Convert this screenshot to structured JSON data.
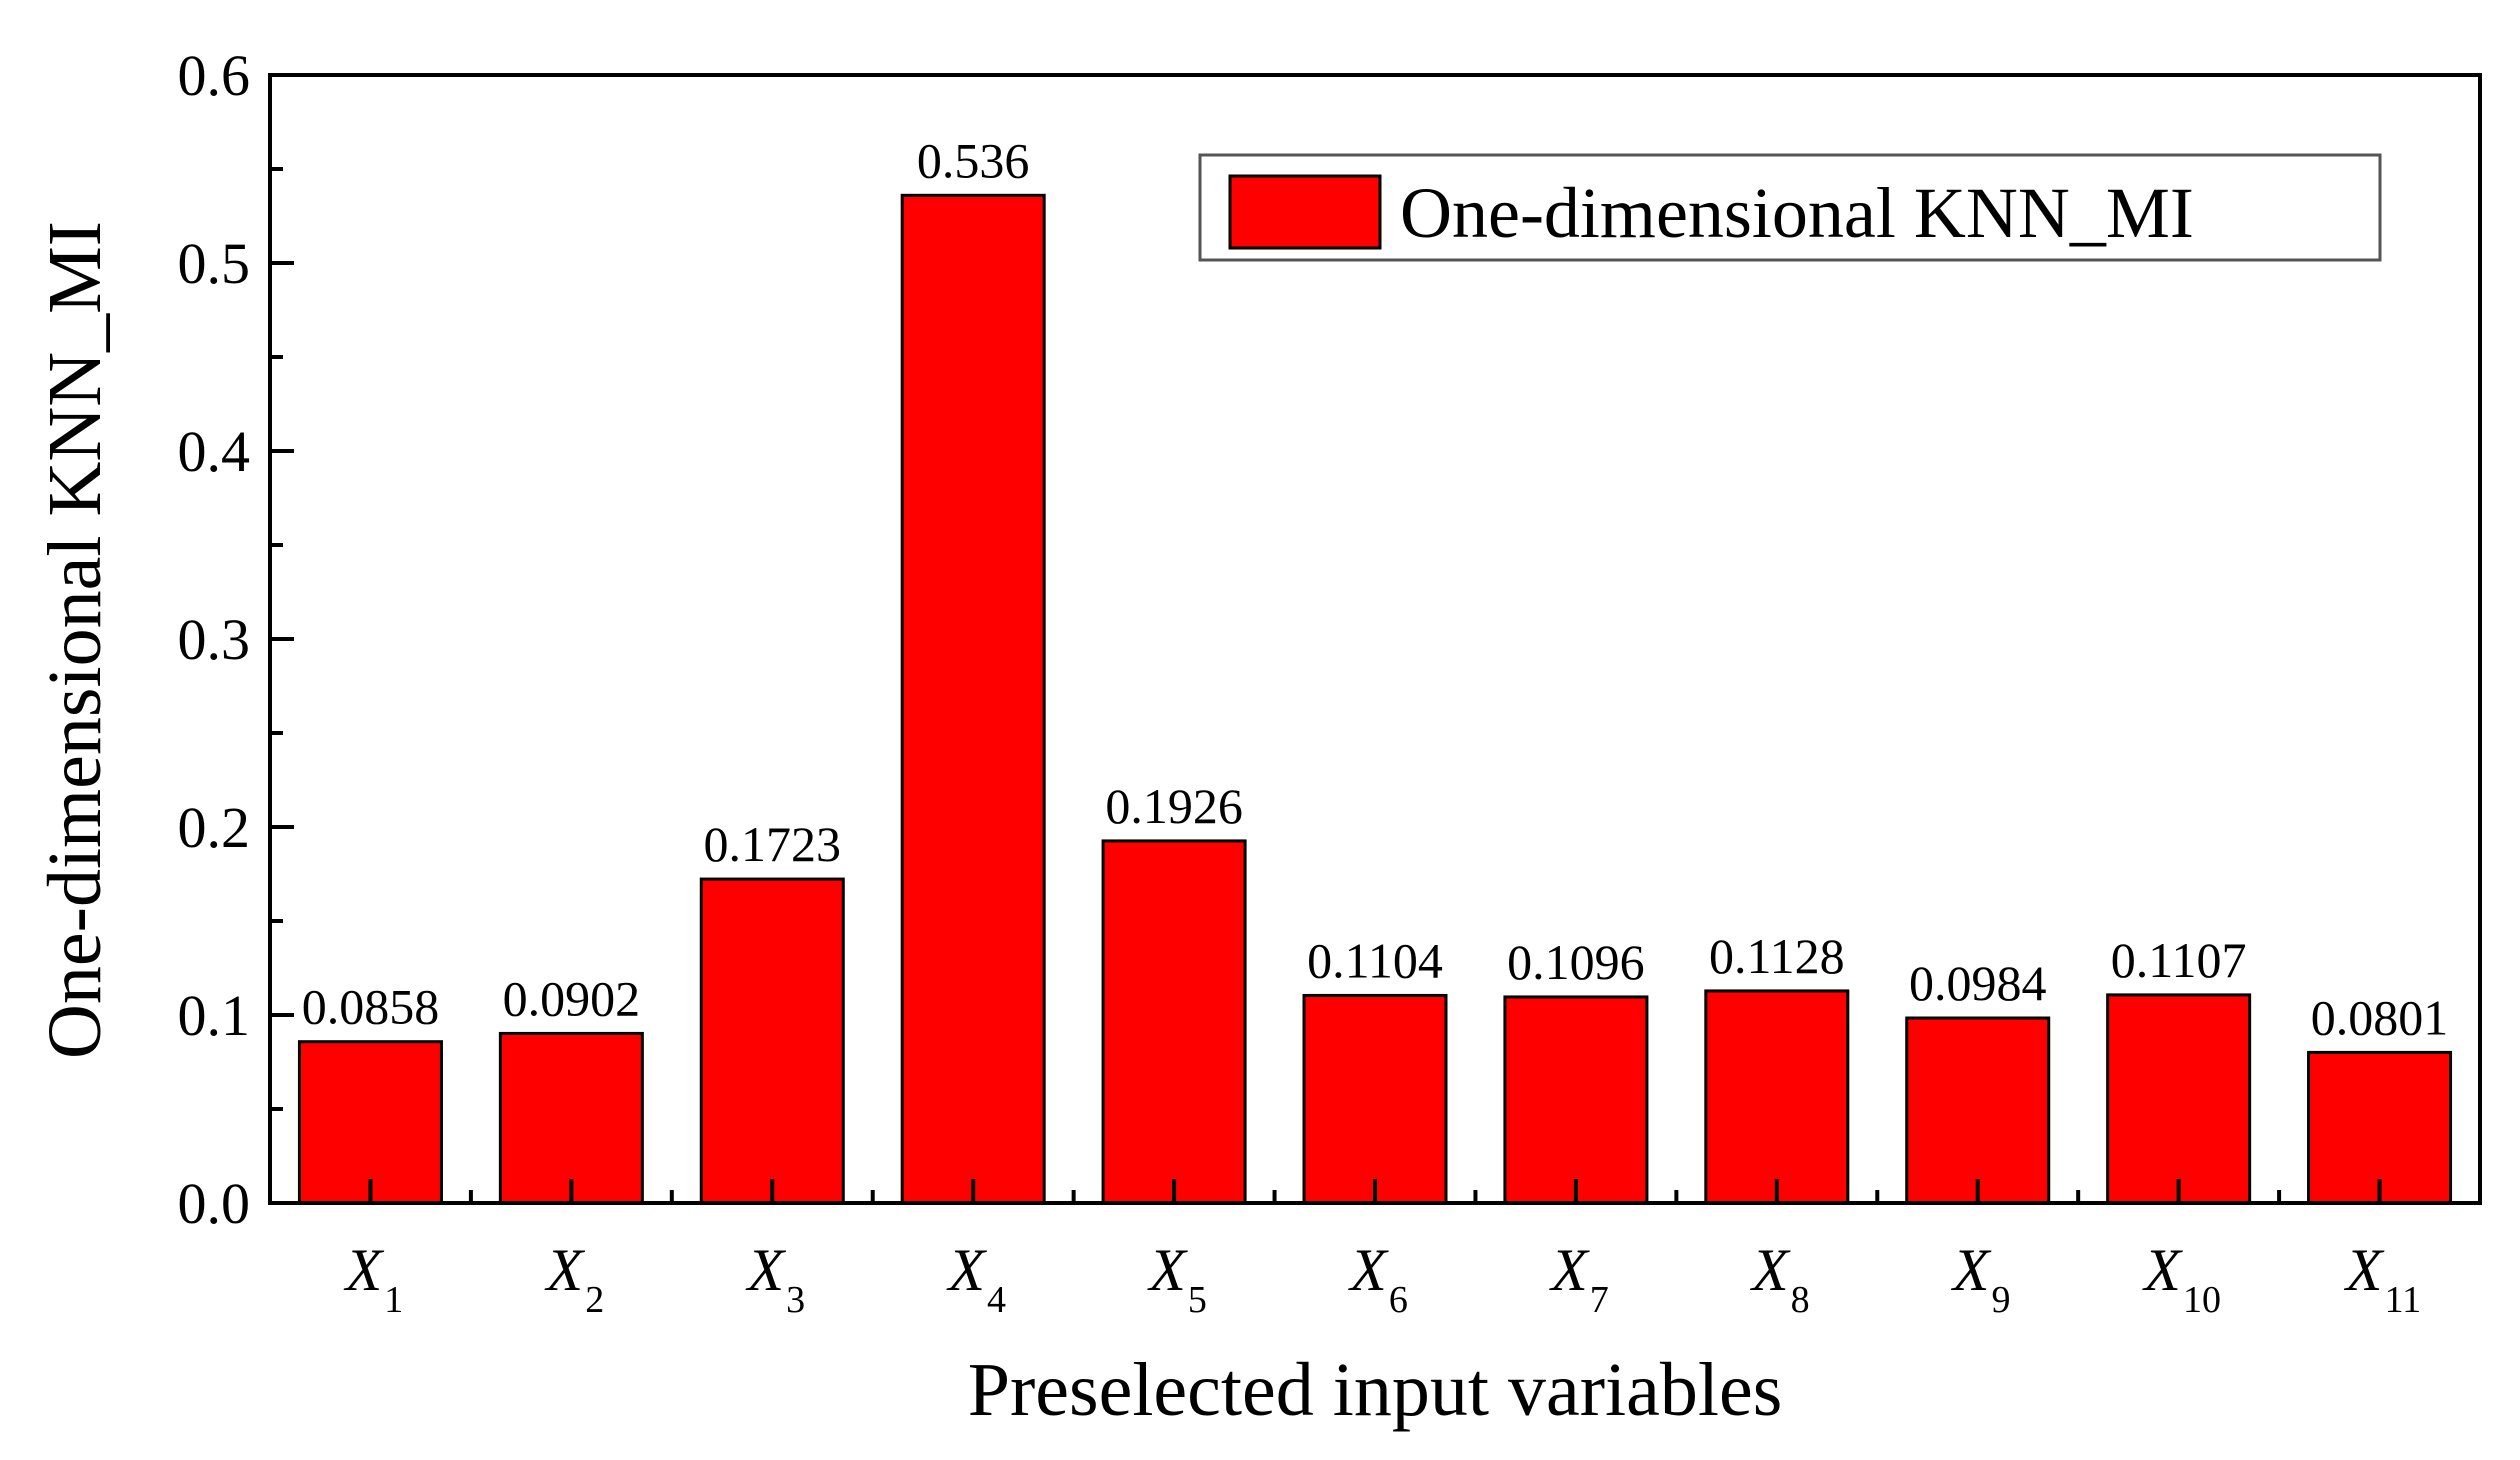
{
  "chart_data": {
    "type": "bar",
    "title": "",
    "xlabel": "Preselected input variables",
    "ylabel": "One-dimensional KNN_MI",
    "ylim": [
      0,
      0.6
    ],
    "yticks": [
      "0.0",
      "0.1",
      "0.2",
      "0.3",
      "0.4",
      "0.5",
      "0.6"
    ],
    "categories": [
      {
        "main": "X",
        "sub": "1"
      },
      {
        "main": "X",
        "sub": "2"
      },
      {
        "main": "X",
        "sub": "3"
      },
      {
        "main": "X",
        "sub": "4"
      },
      {
        "main": "X",
        "sub": "5"
      },
      {
        "main": "X",
        "sub": "6"
      },
      {
        "main": "X",
        "sub": "7"
      },
      {
        "main": "X",
        "sub": "8"
      },
      {
        "main": "X",
        "sub": "9"
      },
      {
        "main": "X",
        "sub": "10"
      },
      {
        "main": "X",
        "sub": "11"
      }
    ],
    "series": [
      {
        "name": "One-dimensional KNN_MI",
        "color": "#ff0000",
        "values": [
          0.0858,
          0.0902,
          0.1723,
          0.536,
          0.1926,
          0.1104,
          0.1096,
          0.1128,
          0.0984,
          0.1107,
          0.0801
        ],
        "labels": [
          "0.0858",
          "0.0902",
          "0.1723",
          "0.536",
          "0.1926",
          "0.1104",
          "0.1096",
          "0.1128",
          "0.0984",
          "0.1107",
          "0.0801"
        ]
      }
    ],
    "legend": {
      "position": "top-right",
      "label": "One-dimensional KNN_MI"
    },
    "grid": false
  }
}
